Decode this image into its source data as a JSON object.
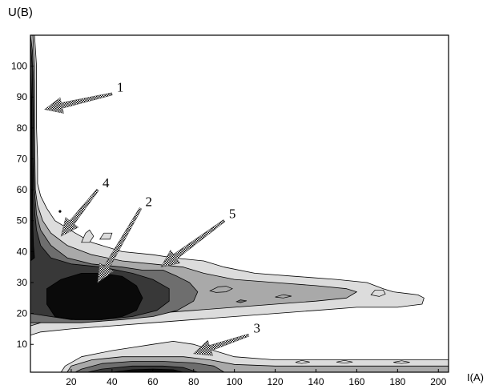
{
  "chart_data": {
    "type": "contour",
    "title": "",
    "xlabel": "I(A)",
    "ylabel": "U(B)",
    "xlim": [
      0,
      205
    ],
    "ylim": [
      1,
      110
    ],
    "xticks": [
      20,
      40,
      60,
      80,
      100,
      120,
      140,
      160,
      180,
      200
    ],
    "yticks": [
      10,
      20,
      30,
      40,
      50,
      60,
      70,
      80,
      90,
      100
    ],
    "grid": false,
    "levels": [
      {
        "level": 1,
        "color": "#dcdcdc"
      },
      {
        "level": 2,
        "color": "#a9a9a9"
      },
      {
        "level": 3,
        "color": "#6e6e6e"
      },
      {
        "level": 4,
        "color": "#383838"
      },
      {
        "level": 5,
        "color": "#0a0a0a"
      }
    ],
    "annotations": [
      {
        "label": "1",
        "tip": [
          7,
          86
        ],
        "tail": [
          40,
          91
        ]
      },
      {
        "label": "2",
        "tip": [
          33,
          30
        ],
        "tail": [
          54,
          54
        ]
      },
      {
        "label": "3",
        "tip": [
          80,
          7
        ],
        "tail": [
          107,
          13
        ]
      },
      {
        "label": "4",
        "tip": [
          15,
          45
        ],
        "tail": [
          33,
          60
        ]
      },
      {
        "label": "5",
        "tip": [
          64,
          35
        ],
        "tail": [
          95,
          50
        ]
      }
    ]
  }
}
